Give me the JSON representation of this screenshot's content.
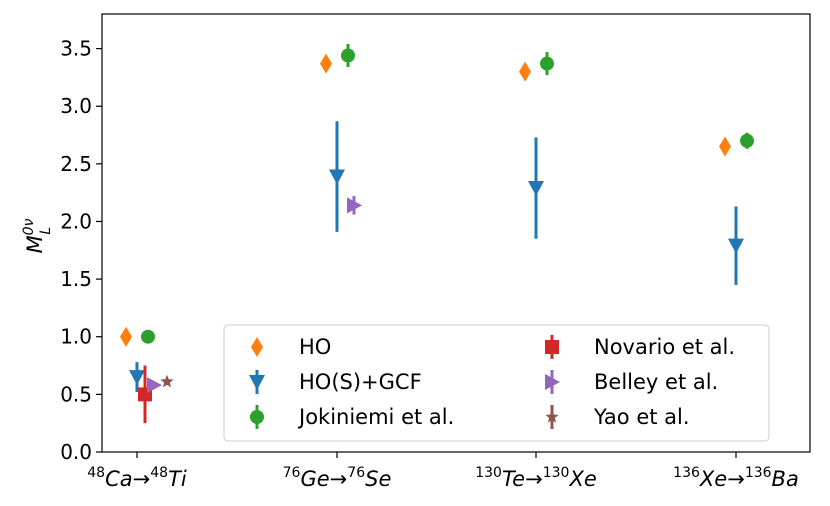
{
  "chart_data": {
    "type": "scatter",
    "title": "",
    "xlabel": "",
    "ylabel": "M",
    "ylabel_super": "0ν",
    "ylabel_sub": "L",
    "ylim": [
      0.0,
      3.8
    ],
    "yticks": [
      "0.0",
      "0.5",
      "1.0",
      "1.5",
      "2.0",
      "2.5",
      "3.0",
      "3.5"
    ],
    "ytick_values": [
      0.0,
      0.5,
      1.0,
      1.5,
      2.0,
      2.5,
      3.0,
      3.5
    ],
    "categories": [
      {
        "a1": "48",
        "e1": "Ca",
        "a2": "48",
        "e2": "Ti"
      },
      {
        "a1": "76",
        "e1": "Ge",
        "a2": "76",
        "e2": "Se"
      },
      {
        "a1": "130",
        "e1": "Te",
        "a2": "130",
        "e2": "Xe"
      },
      {
        "a1": "136",
        "e1": "Xe",
        "a2": "136",
        "e2": "Ba"
      }
    ],
    "arrow": "→",
    "series": [
      {
        "name": "HO",
        "color": "#ff7f0e",
        "marker": "diamond",
        "offset": -0.11,
        "points": [
          {
            "cat": 0,
            "y": 1.0,
            "err": 0
          },
          {
            "cat": 1,
            "y": 3.37,
            "err": 0
          },
          {
            "cat": 2,
            "y": 3.3,
            "err": 0
          },
          {
            "cat": 3,
            "y": 2.65,
            "err": 0
          }
        ]
      },
      {
        "name": "HO(S)+GCF",
        "color": "#1f77b4",
        "marker": "triangle-down",
        "offset": 0.0,
        "points": [
          {
            "cat": 0,
            "y": 0.65,
            "err": 0.13
          },
          {
            "cat": 1,
            "y": 2.39,
            "err": 0.48
          },
          {
            "cat": 2,
            "y": 2.29,
            "err": 0.44
          },
          {
            "cat": 3,
            "y": 1.79,
            "err": 0.34
          }
        ]
      },
      {
        "name": "Jokiniemi et al.",
        "color": "#2ca02c",
        "marker": "circle",
        "offset": 0.11,
        "points": [
          {
            "cat": 0,
            "y": 1.0,
            "err": 0
          },
          {
            "cat": 1,
            "y": 3.44,
            "err": 0.1
          },
          {
            "cat": 2,
            "y": 3.37,
            "err": 0.1
          },
          {
            "cat": 3,
            "y": 2.7,
            "err": 0.07
          }
        ]
      },
      {
        "name": "Novario et al.",
        "color": "#d62728",
        "marker": "square",
        "offset": 0.08,
        "points": [
          {
            "cat": 0,
            "y": 0.5,
            "err": 0.25
          }
        ]
      },
      {
        "name": "Belley et al.",
        "color": "#9467bd",
        "marker": "triangle-right",
        "offset": 0.17,
        "points": [
          {
            "cat": 0,
            "y": 0.58,
            "err": 0
          },
          {
            "cat": 1,
            "y": 2.14,
            "err": 0.08
          }
        ]
      },
      {
        "name": "Yao et al.",
        "color": "#8c564b",
        "marker": "star",
        "offset": 0.3,
        "points": [
          {
            "cat": 0,
            "y": 0.61,
            "err": 0.03
          }
        ]
      }
    ],
    "legend": {
      "position": "lower-right",
      "columns": [
        [
          "HO",
          "HO(S)+GCF",
          "Jokiniemi et al."
        ],
        [
          "Novario et al.",
          "Belley et al.",
          "Yao et al."
        ]
      ]
    }
  }
}
